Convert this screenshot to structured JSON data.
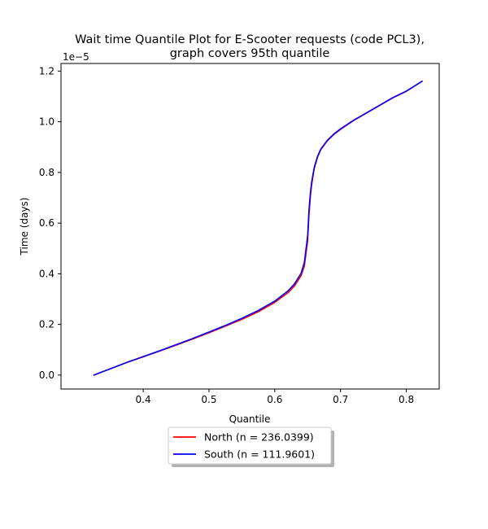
{
  "chart_data": {
    "type": "line",
    "title_line1": "Wait time Quantile Plot for E-Scooter  requests (code PCL3),",
    "title_line2": "graph covers 95th quantile",
    "xlabel": "Quantile",
    "ylabel": "Time (days)",
    "y_offset_label": "1e−5",
    "xlim": [
      0.275,
      0.85
    ],
    "ylim": [
      -0.055,
      1.23
    ],
    "x_ticks": [
      0.4,
      0.5,
      0.6,
      0.7,
      0.8
    ],
    "x_tick_labels": [
      "0.4",
      "0.5",
      "0.6",
      "0.7",
      "0.8"
    ],
    "y_ticks": [
      0.0,
      0.2,
      0.4,
      0.6,
      0.8,
      1.0,
      1.2
    ],
    "y_tick_labels": [
      "0.0",
      "0.2",
      "0.4",
      "0.6",
      "0.8",
      "1.0",
      "1.2"
    ],
    "grid": false,
    "legend_placement": "below-center",
    "series": [
      {
        "name": "North (n = 236.0399)",
        "color": "#ff0000",
        "x": [
          0.325,
          0.35,
          0.375,
          0.4,
          0.425,
          0.45,
          0.475,
          0.5,
          0.525,
          0.55,
          0.575,
          0.6,
          0.62,
          0.63,
          0.64,
          0.645,
          0.65,
          0.652,
          0.654,
          0.656,
          0.66,
          0.665,
          0.67,
          0.68,
          0.69,
          0.7,
          0.72,
          0.74,
          0.76,
          0.78,
          0.8,
          0.824
        ],
        "y": [
          0.0,
          0.025,
          0.05,
          0.072,
          0.095,
          0.118,
          0.142,
          0.167,
          0.193,
          0.22,
          0.25,
          0.287,
          0.325,
          0.352,
          0.392,
          0.43,
          0.53,
          0.63,
          0.7,
          0.75,
          0.815,
          0.86,
          0.89,
          0.925,
          0.95,
          0.97,
          1.005,
          1.035,
          1.065,
          1.095,
          1.12,
          1.16
        ]
      },
      {
        "name": "South (n = 111.9601)",
        "color": "#0000ff",
        "x": [
          0.325,
          0.35,
          0.375,
          0.4,
          0.425,
          0.45,
          0.475,
          0.5,
          0.525,
          0.55,
          0.575,
          0.6,
          0.62,
          0.63,
          0.64,
          0.645,
          0.65,
          0.652,
          0.654,
          0.656,
          0.66,
          0.665,
          0.67,
          0.68,
          0.69,
          0.7,
          0.72,
          0.74,
          0.76,
          0.78,
          0.8,
          0.824
        ],
        "y": [
          0.0,
          0.025,
          0.05,
          0.073,
          0.096,
          0.12,
          0.144,
          0.17,
          0.196,
          0.224,
          0.255,
          0.292,
          0.332,
          0.36,
          0.402,
          0.445,
          0.55,
          0.65,
          0.715,
          0.76,
          0.82,
          0.863,
          0.892,
          0.927,
          0.952,
          0.972,
          1.006,
          1.036,
          1.066,
          1.096,
          1.121,
          1.16
        ]
      }
    ]
  }
}
